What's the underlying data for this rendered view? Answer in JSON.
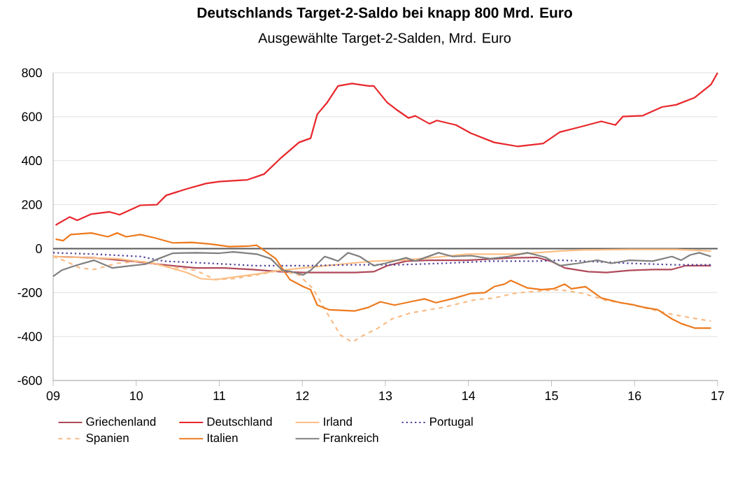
{
  "chart_data": {
    "type": "line",
    "title": "Deutschlands Target-2-Saldo bei knapp 800 Mrd. Euro",
    "subtitle": "Ausgewählte Target-2-Salden, Mrd. Euro",
    "xlim": [
      2009,
      2017
    ],
    "xticks": [
      {
        "value": 2009,
        "label": "09"
      },
      {
        "value": 2010,
        "label": "10"
      },
      {
        "value": 2011,
        "label": "11"
      },
      {
        "value": 2012,
        "label": "12"
      },
      {
        "value": 2013,
        "label": "13"
      },
      {
        "value": 2014,
        "label": "14"
      },
      {
        "value": 2015,
        "label": "15"
      },
      {
        "value": 2016,
        "label": "16"
      },
      {
        "value": 2017,
        "label": "17"
      }
    ],
    "ylim": [
      -600,
      800
    ],
    "yticks": [
      -600,
      -400,
      -200,
      0,
      200,
      400,
      600,
      800
    ],
    "grid": "y",
    "legend": "bottom",
    "ref_lines": [
      {
        "axis": "y",
        "value": 0,
        "color": "#595959"
      }
    ],
    "series": [
      {
        "name": "Griechenland",
        "color": "#b04a5a",
        "line_style": "solid",
        "x": [
          2009.0,
          2009.49,
          2009.94,
          2010.33,
          2010.72,
          2011.06,
          2011.4,
          2011.73,
          2012.01,
          2012.29,
          2012.63,
          2012.86,
          2013.02,
          2013.25,
          2013.53,
          2013.98,
          2014.54,
          2014.82,
          2014.99,
          2015.16,
          2015.44,
          2015.66,
          2015.94,
          2016.22,
          2016.45,
          2016.61,
          2016.92
        ],
        "values": [
          -36,
          -42,
          -57,
          -74,
          -88,
          -88,
          -95,
          -105,
          -109,
          -109,
          -109,
          -105,
          -78,
          -57,
          -53,
          -53,
          -42,
          -40,
          -57,
          -88,
          -105,
          -109,
          -99,
          -95,
          -95,
          -78,
          -78
        ]
      },
      {
        "name": "Deutschland",
        "color": "#e8262b",
        "line_style": "solid",
        "x": [
          2009.03,
          2009.2,
          2009.29,
          2009.46,
          2009.68,
          2009.8,
          2010.05,
          2010.25,
          2010.36,
          2010.61,
          2010.84,
          2011.0,
          2011.34,
          2011.54,
          2011.73,
          2011.96,
          2012.1,
          2012.18,
          2012.3,
          2012.43,
          2012.6,
          2012.8,
          2012.86,
          2013.02,
          2013.13,
          2013.28,
          2013.36,
          2013.53,
          2013.62,
          2013.85,
          2014.03,
          2014.31,
          2014.59,
          2014.9,
          2015.1,
          2015.32,
          2015.6,
          2015.77,
          2015.86,
          2016.1,
          2016.33,
          2016.5,
          2016.72,
          2016.92,
          2017.0
        ],
        "values": [
          107,
          144,
          129,
          157,
          167,
          154,
          197,
          200,
          242,
          272,
          296,
          305,
          313,
          339,
          408,
          483,
          502,
          611,
          665,
          740,
          751,
          740,
          740,
          665,
          633,
          594,
          604,
          568,
          583,
          562,
          525,
          483,
          465,
          478,
          530,
          551,
          579,
          562,
          601,
          605,
          644,
          654,
          686,
          746,
          800
        ]
      },
      {
        "name": "Irland",
        "color": "#fbbf86",
        "line_style": "solid",
        "x": [
          2009.0,
          2009.26,
          2009.77,
          2010.22,
          2010.61,
          2010.78,
          2010.95,
          2011.17,
          2011.45,
          2011.73,
          2012.01,
          2012.29,
          2012.57,
          2012.86,
          2013.19,
          2013.42,
          2013.7,
          2013.98,
          2014.26,
          2014.54,
          2014.82,
          2015.1,
          2015.38,
          2015.94,
          2016.5,
          2016.92
        ],
        "values": [
          -36,
          -40,
          -46,
          -67,
          -109,
          -137,
          -141,
          -130,
          -116,
          -99,
          -88,
          -78,
          -67,
          -57,
          -53,
          -46,
          -36,
          -25,
          -25,
          -25,
          -19,
          -11,
          -6,
          -4,
          -4,
          -11
        ]
      },
      {
        "name": "Portugal",
        "color": "#4b3f9a",
        "line_style": "dotted",
        "x": [
          2009.0,
          2009.49,
          2010.05,
          2010.33,
          2010.89,
          2011.45,
          2012.01,
          2012.57,
          2013.13,
          2013.7,
          2014.26,
          2014.82,
          2015.1,
          2015.38,
          2015.94,
          2016.5,
          2016.92
        ],
        "values": [
          -19,
          -25,
          -36,
          -57,
          -67,
          -78,
          -78,
          -74,
          -74,
          -67,
          -57,
          -57,
          -53,
          -57,
          -67,
          -74,
          -74
        ]
      },
      {
        "name": "Spanien",
        "color": "#f9bb85",
        "line_style": "dashed",
        "x": [
          2009.0,
          2009.15,
          2009.32,
          2009.49,
          2009.77,
          2010.05,
          2010.33,
          2010.72,
          2010.95,
          2011.17,
          2011.45,
          2011.73,
          2011.96,
          2012.13,
          2012.29,
          2012.46,
          2012.6,
          2012.74,
          2012.91,
          2013.08,
          2013.3,
          2013.7,
          2014.09,
          2014.31,
          2014.54,
          2014.82,
          2015.1,
          2015.38,
          2015.66,
          2015.94,
          2016.22,
          2016.45,
          2016.67,
          2016.92
        ],
        "values": [
          -36,
          -57,
          -88,
          -95,
          -67,
          -57,
          -78,
          -99,
          -141,
          -137,
          -120,
          -99,
          -120,
          -183,
          -288,
          -394,
          -425,
          -394,
          -362,
          -320,
          -293,
          -267,
          -232,
          -225,
          -204,
          -194,
          -187,
          -204,
          -236,
          -253,
          -278,
          -299,
          -314,
          -330
        ]
      },
      {
        "name": "Italien",
        "color": "#ec7a1e",
        "line_style": "solid",
        "x": [
          2009.03,
          2009.12,
          2009.21,
          2009.46,
          2009.66,
          2009.77,
          2009.88,
          2010.05,
          2010.22,
          2010.44,
          2010.67,
          2010.89,
          2011.12,
          2011.34,
          2011.45,
          2011.51,
          2011.68,
          2011.85,
          2012.01,
          2012.1,
          2012.18,
          2012.32,
          2012.63,
          2012.8,
          2012.94,
          2013.11,
          2013.3,
          2013.47,
          2013.61,
          2013.84,
          2014.03,
          2014.2,
          2014.31,
          2014.43,
          2014.51,
          2014.71,
          2014.88,
          2015.02,
          2015.16,
          2015.24,
          2015.41,
          2015.6,
          2015.83,
          2016.0,
          2016.11,
          2016.28,
          2016.45,
          2016.56,
          2016.73,
          2016.92
        ],
        "values": [
          43,
          36,
          64,
          71,
          54,
          71,
          54,
          64,
          49,
          26,
          28,
          21,
          9,
          11,
          15,
          0,
          -46,
          -141,
          -173,
          -187,
          -257,
          -278,
          -284,
          -267,
          -242,
          -257,
          -242,
          -229,
          -246,
          -225,
          -204,
          -200,
          -173,
          -162,
          -145,
          -179,
          -187,
          -183,
          -162,
          -183,
          -173,
          -225,
          -246,
          -257,
          -267,
          -278,
          -320,
          -341,
          -362,
          -362
        ]
      },
      {
        "name": "Frankreich",
        "color": "#808080",
        "line_style": "solid",
        "x": [
          2009.0,
          2009.1,
          2009.26,
          2009.49,
          2009.71,
          2009.94,
          2010.11,
          2010.27,
          2010.44,
          2010.72,
          2011.0,
          2011.17,
          2011.45,
          2011.62,
          2011.76,
          2011.85,
          2012.01,
          2012.1,
          2012.27,
          2012.35,
          2012.43,
          2012.55,
          2012.69,
          2012.86,
          2013.0,
          2013.25,
          2013.36,
          2013.64,
          2013.81,
          2014.03,
          2014.26,
          2014.48,
          2014.71,
          2014.93,
          2015.1,
          2015.32,
          2015.55,
          2015.72,
          2015.94,
          2016.22,
          2016.45,
          2016.56,
          2016.67,
          2016.78,
          2016.92
        ],
        "values": [
          -126,
          -99,
          -78,
          -53,
          -88,
          -78,
          -71,
          -46,
          -21,
          -19,
          -21,
          -15,
          -25,
          -46,
          -99,
          -103,
          -120,
          -99,
          -36,
          -46,
          -57,
          -19,
          -36,
          -78,
          -67,
          -42,
          -57,
          -19,
          -36,
          -32,
          -46,
          -36,
          -19,
          -40,
          -78,
          -67,
          -53,
          -67,
          -53,
          -57,
          -36,
          -53,
          -29,
          -19,
          -36
        ]
      }
    ]
  }
}
